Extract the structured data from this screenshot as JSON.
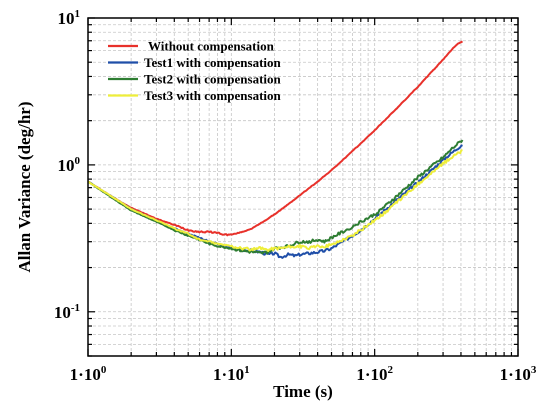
{
  "chart_data": {
    "type": "line",
    "title": "",
    "xlabel": "Time (s)",
    "ylabel": "Allan Variance (deg/hr)",
    "x_scale": "log",
    "y_scale": "log",
    "xlim": [
      1,
      1000
    ],
    "ylim": [
      0.05,
      10
    ],
    "grid": true,
    "legend_position": "top-left",
    "x_ticks": [
      {
        "value": 1,
        "base": "1·10",
        "exp": "0"
      },
      {
        "value": 10,
        "base": "1·10",
        "exp": "1"
      },
      {
        "value": 100,
        "base": "1·10",
        "exp": "2"
      },
      {
        "value": 1000,
        "base": "1·10",
        "exp": "3"
      }
    ],
    "y_ticks": [
      {
        "value": 10,
        "base": "10",
        "exp": "1"
      },
      {
        "value": 1,
        "base": "10",
        "exp": "0"
      },
      {
        "value": 0.1,
        "base": "10",
        "exp": "-1"
      }
    ],
    "series": [
      {
        "name": "Without compensation",
        "color": "#e8312b",
        "points": [
          [
            1,
            0.77
          ],
          [
            1.5,
            0.6
          ],
          [
            2,
            0.51
          ],
          [
            3,
            0.43
          ],
          [
            4,
            0.39
          ],
          [
            5,
            0.36
          ],
          [
            6,
            0.35
          ],
          [
            7,
            0.35
          ],
          [
            8,
            0.345
          ],
          [
            9,
            0.335
          ],
          [
            10,
            0.335
          ],
          [
            12,
            0.35
          ],
          [
            14,
            0.37
          ],
          [
            16,
            0.4
          ],
          [
            18,
            0.43
          ],
          [
            20,
            0.46
          ],
          [
            25,
            0.54
          ],
          [
            30,
            0.62
          ],
          [
            40,
            0.77
          ],
          [
            50,
            0.92
          ],
          [
            60,
            1.08
          ],
          [
            80,
            1.4
          ],
          [
            100,
            1.72
          ],
          [
            150,
            2.55
          ],
          [
            200,
            3.4
          ],
          [
            250,
            4.3
          ],
          [
            300,
            5.2
          ],
          [
            350,
            6.2
          ],
          [
            380,
            6.7
          ],
          [
            410,
            6.9
          ]
        ]
      },
      {
        "name": "Test1 with compensation",
        "color": "#1f4ea8",
        "points": [
          [
            1,
            0.77
          ],
          [
            1.5,
            0.6
          ],
          [
            2,
            0.5
          ],
          [
            3,
            0.42
          ],
          [
            4,
            0.37
          ],
          [
            5,
            0.34
          ],
          [
            6,
            0.32
          ],
          [
            7,
            0.3
          ],
          [
            8,
            0.29
          ],
          [
            10,
            0.27
          ],
          [
            12,
            0.265
          ],
          [
            14,
            0.26
          ],
          [
            16,
            0.255
          ],
          [
            18,
            0.245
          ],
          [
            20,
            0.25
          ],
          [
            22,
            0.235
          ],
          [
            25,
            0.245
          ],
          [
            28,
            0.24
          ],
          [
            30,
            0.245
          ],
          [
            35,
            0.25
          ],
          [
            40,
            0.255
          ],
          [
            45,
            0.26
          ],
          [
            50,
            0.27
          ],
          [
            60,
            0.3
          ],
          [
            70,
            0.33
          ],
          [
            80,
            0.36
          ],
          [
            100,
            0.43
          ],
          [
            120,
            0.5
          ],
          [
            150,
            0.6
          ],
          [
            200,
            0.76
          ],
          [
            250,
            0.92
          ],
          [
            300,
            1.08
          ],
          [
            350,
            1.22
          ],
          [
            410,
            1.38
          ]
        ]
      },
      {
        "name": "Test2 with compensation",
        "color": "#2e7d32",
        "points": [
          [
            1,
            0.77
          ],
          [
            1.5,
            0.59
          ],
          [
            2,
            0.49
          ],
          [
            3,
            0.41
          ],
          [
            4,
            0.36
          ],
          [
            5,
            0.33
          ],
          [
            6,
            0.31
          ],
          [
            7,
            0.29
          ],
          [
            8,
            0.28
          ],
          [
            10,
            0.27
          ],
          [
            12,
            0.26
          ],
          [
            14,
            0.255
          ],
          [
            16,
            0.25
          ],
          [
            18,
            0.255
          ],
          [
            20,
            0.27
          ],
          [
            25,
            0.28
          ],
          [
            30,
            0.3
          ],
          [
            35,
            0.3
          ],
          [
            40,
            0.31
          ],
          [
            45,
            0.3
          ],
          [
            50,
            0.32
          ],
          [
            60,
            0.35
          ],
          [
            70,
            0.38
          ],
          [
            80,
            0.41
          ],
          [
            100,
            0.46
          ],
          [
            120,
            0.53
          ],
          [
            150,
            0.64
          ],
          [
            200,
            0.82
          ],
          [
            250,
            0.98
          ],
          [
            300,
            1.12
          ],
          [
            350,
            1.3
          ],
          [
            410,
            1.48
          ]
        ]
      },
      {
        "name": "Test3 with compensation",
        "color": "#eeee3a",
        "points": [
          [
            1,
            0.77
          ],
          [
            1.5,
            0.6
          ],
          [
            2,
            0.5
          ],
          [
            3,
            0.42
          ],
          [
            4,
            0.37
          ],
          [
            5,
            0.34
          ],
          [
            6,
            0.31
          ],
          [
            7,
            0.3
          ],
          [
            8,
            0.29
          ],
          [
            10,
            0.28
          ],
          [
            12,
            0.27
          ],
          [
            14,
            0.265
          ],
          [
            16,
            0.27
          ],
          [
            18,
            0.265
          ],
          [
            20,
            0.27
          ],
          [
            25,
            0.275
          ],
          [
            30,
            0.28
          ],
          [
            35,
            0.27
          ],
          [
            40,
            0.28
          ],
          [
            45,
            0.28
          ],
          [
            50,
            0.285
          ],
          [
            60,
            0.31
          ],
          [
            70,
            0.33
          ],
          [
            80,
            0.36
          ],
          [
            100,
            0.42
          ],
          [
            120,
            0.48
          ],
          [
            150,
            0.58
          ],
          [
            200,
            0.74
          ],
          [
            250,
            0.88
          ],
          [
            300,
            1.02
          ],
          [
            350,
            1.14
          ],
          [
            410,
            1.25
          ]
        ]
      }
    ]
  }
}
